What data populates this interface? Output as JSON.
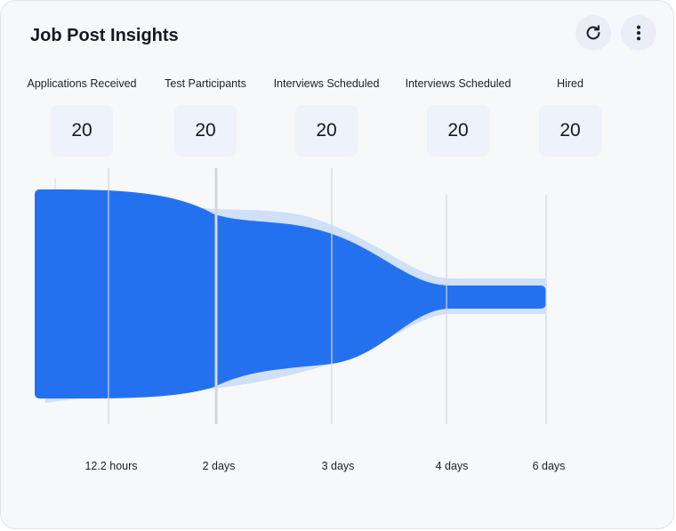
{
  "header": {
    "title": "Job Post Insights",
    "refresh_icon": "refresh-icon",
    "more_icon": "more-vertical-icon"
  },
  "stages": [
    {
      "label": "Applications Received",
      "count": "20"
    },
    {
      "label": "Test Participants",
      "count": "20"
    },
    {
      "label": "Interviews Scheduled",
      "count": "20"
    },
    {
      "label": "Interviews Scheduled",
      "count": "20"
    },
    {
      "label": "Hired",
      "count": "20"
    }
  ],
  "durations": [
    "12.2 hours",
    "2 days",
    "3 days",
    "4 days",
    "6 days"
  ],
  "colors": {
    "funnel_main": "#2471f0",
    "funnel_shadow": "#cfe0f7",
    "divider": "#d3d6db"
  }
}
